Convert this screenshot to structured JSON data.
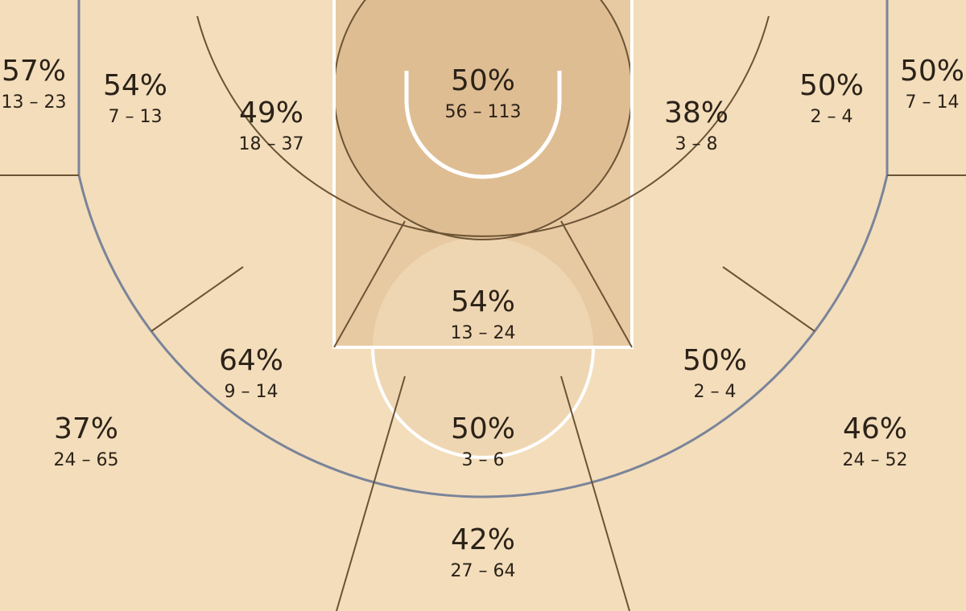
{
  "chart_data": {
    "type": "heatmap",
    "subtype": "basketball-shot-zone-chart",
    "colors": {
      "court": "#f3ddbb",
      "paint": "#e8caa2",
      "restricted": "#dfbd93",
      "lines": "#6b5435",
      "three_point_line": "#7a8499",
      "court_markings": "#ffffff"
    },
    "zones": [
      {
        "zone": "left-corner-three",
        "pct": "57%",
        "made_attempted": "13 – 23",
        "made": 13,
        "attempted": 23
      },
      {
        "zone": "left-baseline-mid",
        "pct": "54%",
        "made_attempted": "7 – 13",
        "made": 7,
        "attempted": 13
      },
      {
        "zone": "left-short-mid",
        "pct": "49%",
        "made_attempted": "18 – 37",
        "made": 18,
        "attempted": 37
      },
      {
        "zone": "restricted-area",
        "pct": "50%",
        "made_attempted": "56 – 113",
        "made": 56,
        "attempted": 113
      },
      {
        "zone": "right-short-mid",
        "pct": "38%",
        "made_attempted": "3 – 8",
        "made": 3,
        "attempted": 8
      },
      {
        "zone": "right-baseline-mid",
        "pct": "50%",
        "made_attempted": "2 – 4",
        "made": 2,
        "attempted": 4
      },
      {
        "zone": "right-corner-three",
        "pct": "50%",
        "made_attempted": "7 – 14",
        "made": 7,
        "attempted": 14
      },
      {
        "zone": "paint-non-ra",
        "pct": "54%",
        "made_attempted": "13 – 24",
        "made": 13,
        "attempted": 24
      },
      {
        "zone": "left-wing-mid",
        "pct": "64%",
        "made_attempted": "9 – 14",
        "made": 9,
        "attempted": 14
      },
      {
        "zone": "right-wing-mid",
        "pct": "50%",
        "made_attempted": "2 – 4",
        "made": 2,
        "attempted": 4
      },
      {
        "zone": "top-key-mid",
        "pct": "50%",
        "made_attempted": "3 – 6",
        "made": 3,
        "attempted": 6
      },
      {
        "zone": "left-wing-three",
        "pct": "37%",
        "made_attempted": "24 – 65",
        "made": 24,
        "attempted": 65
      },
      {
        "zone": "right-wing-three",
        "pct": "46%",
        "made_attempted": "24 – 52",
        "made": 24,
        "attempted": 52
      },
      {
        "zone": "top-key-three",
        "pct": "42%",
        "made_attempted": "27 – 64",
        "made": 27,
        "attempted": 64
      }
    ]
  }
}
